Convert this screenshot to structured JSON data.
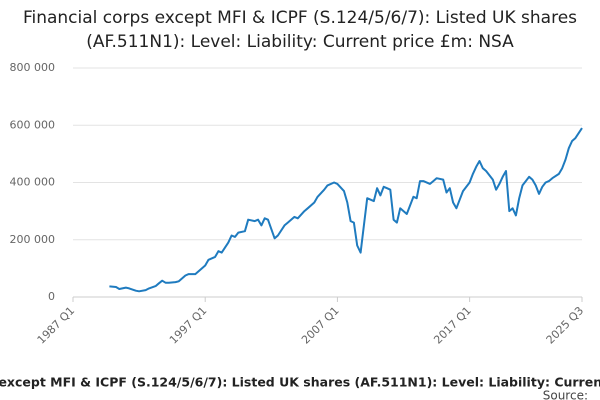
{
  "chart_data": {
    "type": "line",
    "title": "Financial corps except MFI & ICPF (S.124/5/6/7): Listed UK shares (AF.511N1): Level: Liability: Current price £m: NSA",
    "source": "Source:",
    "x": [
      "1989 Q4",
      "1990 Q2",
      "1990 Q3",
      "1991 Q1",
      "1991 Q2",
      "1991 Q4",
      "1992 Q1",
      "1992 Q3",
      "1992 Q4",
      "1993 Q2",
      "1993 Q3",
      "1993 Q4",
      "1994 Q1",
      "1994 Q2",
      "1994 Q4",
      "1995 Q1",
      "1995 Q3",
      "1995 Q4",
      "1996 Q2",
      "1996 Q3",
      "1997 Q1",
      "1997 Q2",
      "1997 Q4",
      "1998 Q1",
      "1998 Q2",
      "1998 Q4",
      "1999 Q1",
      "1999 Q2",
      "1999 Q3",
      "2000 Q1",
      "2000 Q2",
      "2000 Q4",
      "2001 Q1",
      "2001 Q2",
      "2001 Q3",
      "2001 Q4",
      "2002 Q2",
      "2002 Q3",
      "2003 Q1",
      "2003 Q2",
      "2003 Q4",
      "2004 Q1",
      "2004 Q3",
      "2004 Q4",
      "2005 Q2",
      "2005 Q3",
      "2006 Q1",
      "2006 Q2",
      "2006 Q4",
      "2007 Q1",
      "2007 Q3",
      "2007 Q4",
      "2008 Q1",
      "2008 Q2",
      "2008 Q3",
      "2008 Q4",
      "2009 Q1",
      "2009 Q2",
      "2009 Q4",
      "2010 Q1",
      "2010 Q2",
      "2010 Q3",
      "2010 Q4",
      "2011 Q1",
      "2011 Q2",
      "2011 Q3",
      "2011 Q4",
      "2012 Q2",
      "2012 Q3",
      "2012 Q4",
      "2013 Q1",
      "2013 Q2",
      "2013 Q3",
      "2014 Q1",
      "2014 Q2",
      "2014 Q3",
      "2015 Q1",
      "2015 Q2",
      "2015 Q3",
      "2015 Q4",
      "2016 Q1",
      "2016 Q2",
      "2016 Q3",
      "2017 Q1",
      "2017 Q2",
      "2017 Q3",
      "2017 Q4",
      "2018 Q1",
      "2018 Q2",
      "2018 Q4",
      "2019 Q1",
      "2019 Q2",
      "2019 Q3",
      "2019 Q4",
      "2020 Q1",
      "2020 Q2",
      "2020 Q3",
      "2020 Q4",
      "2021 Q1",
      "2021 Q2",
      "2021 Q3",
      "2021 Q4",
      "2022 Q1",
      "2022 Q2",
      "2022 Q3",
      "2022 Q4",
      "2023 Q1",
      "2023 Q2",
      "2023 Q4",
      "2024 Q1",
      "2024 Q2",
      "2024 Q3",
      "2024 Q4",
      "2025 Q1",
      "2025 Q3"
    ],
    "series": [
      {
        "name": "Financial corps except MFI & ICPF (S.124/5/6/7): Listed UK shares (AF.511N1): Level: Liability: Current price £m: NSA",
        "color": "#1f7bbf",
        "values": [
          37000,
          35000,
          28000,
          33000,
          30000,
          22000,
          20000,
          24000,
          30000,
          38000,
          48000,
          57000,
          50000,
          50000,
          52000,
          55000,
          75000,
          80000,
          80000,
          90000,
          110000,
          130000,
          140000,
          160000,
          155000,
          190000,
          215000,
          210000,
          225000,
          230000,
          270000,
          265000,
          270000,
          250000,
          275000,
          270000,
          205000,
          215000,
          250000,
          260000,
          280000,
          275000,
          300000,
          310000,
          330000,
          350000,
          375000,
          390000,
          400000,
          395000,
          370000,
          330000,
          265000,
          260000,
          180000,
          155000,
          250000,
          345000,
          335000,
          380000,
          355000,
          385000,
          380000,
          375000,
          270000,
          260000,
          310000,
          290000,
          320000,
          350000,
          345000,
          405000,
          405000,
          395000,
          405000,
          415000,
          410000,
          365000,
          380000,
          330000,
          310000,
          340000,
          370000,
          400000,
          430000,
          455000,
          475000,
          450000,
          440000,
          410000,
          375000,
          395000,
          420000,
          440000,
          300000,
          310000,
          285000,
          345000,
          390000,
          405000,
          420000,
          410000,
          390000,
          360000,
          385000,
          400000,
          405000,
          415000,
          430000,
          450000,
          480000,
          520000,
          545000,
          555000,
          590000
        ]
      }
    ],
    "xlim": [
      "1987 Q1",
      "2025 Q3"
    ],
    "xticks": [
      "1987 Q1",
      "1997 Q1",
      "2007 Q1",
      "2017 Q1",
      "2025 Q3"
    ],
    "ylim": [
      0,
      800000
    ],
    "yticks": [
      0,
      {
        "value": 200000,
        "label": "200 000"
      },
      {
        "value": 400000,
        "label": "400 000"
      },
      {
        "value": 600000,
        "label": "600 000"
      },
      {
        "value": 800000,
        "label": "800 000"
      }
    ],
    "grid": true
  }
}
